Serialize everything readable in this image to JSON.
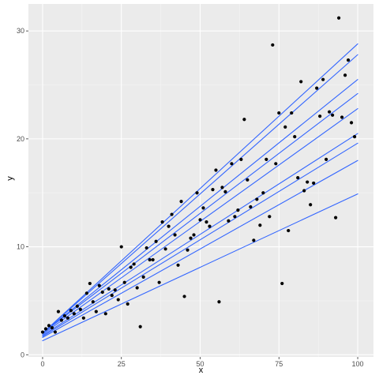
{
  "chart_data": {
    "type": "scatter",
    "xlabel": "x",
    "ylabel": "y",
    "xlim": [
      -4.5,
      105
    ],
    "ylim": [
      -0.2,
      32.5
    ],
    "x_ticks": [
      0,
      25,
      50,
      75,
      100
    ],
    "x_tick_labels": [
      "0",
      "25",
      "50",
      "75",
      "100"
    ],
    "y_ticks": [
      0,
      10,
      20,
      30
    ],
    "y_tick_labels": [
      "0",
      "10",
      "20",
      "30"
    ],
    "grid": true,
    "colors": {
      "panel": "#ebebeb",
      "grid_major": "#ffffff",
      "grid_minor": "#f5f5f5",
      "points": "#000000",
      "lines": "#3366ff"
    },
    "points": [
      {
        "x": 0,
        "y": 2.1
      },
      {
        "x": 1,
        "y": 2.4
      },
      {
        "x": 2,
        "y": 2.7
      },
      {
        "x": 3,
        "y": 2.5
      },
      {
        "x": 4,
        "y": 2.1
      },
      {
        "x": 5,
        "y": 4.0
      },
      {
        "x": 6,
        "y": 3.2
      },
      {
        "x": 7,
        "y": 3.6
      },
      {
        "x": 8,
        "y": 3.4
      },
      {
        "x": 9,
        "y": 4.1
      },
      {
        "x": 10,
        "y": 3.8
      },
      {
        "x": 11,
        "y": 4.5
      },
      {
        "x": 12,
        "y": 4.2
      },
      {
        "x": 13,
        "y": 3.4
      },
      {
        "x": 14,
        "y": 5.7
      },
      {
        "x": 15,
        "y": 6.6
      },
      {
        "x": 16,
        "y": 4.9
      },
      {
        "x": 17,
        "y": 4.0
      },
      {
        "x": 18,
        "y": 6.4
      },
      {
        "x": 19,
        "y": 5.8
      },
      {
        "x": 20,
        "y": 3.8
      },
      {
        "x": 21,
        "y": 6.1
      },
      {
        "x": 22,
        "y": 5.5
      },
      {
        "x": 23,
        "y": 6.0
      },
      {
        "x": 24,
        "y": 5.1
      },
      {
        "x": 25,
        "y": 10.0
      },
      {
        "x": 26,
        "y": 6.7
      },
      {
        "x": 27,
        "y": 4.7
      },
      {
        "x": 28,
        "y": 8.1
      },
      {
        "x": 29,
        "y": 8.4
      },
      {
        "x": 30,
        "y": 6.2
      },
      {
        "x": 31,
        "y": 2.6
      },
      {
        "x": 32,
        "y": 7.2
      },
      {
        "x": 33,
        "y": 9.9
      },
      {
        "x": 34,
        "y": 8.8
      },
      {
        "x": 35,
        "y": 8.8
      },
      {
        "x": 36,
        "y": 10.5
      },
      {
        "x": 37,
        "y": 6.7
      },
      {
        "x": 38,
        "y": 12.3
      },
      {
        "x": 39,
        "y": 9.8
      },
      {
        "x": 40,
        "y": 11.9
      },
      {
        "x": 41,
        "y": 13.0
      },
      {
        "x": 42,
        "y": 11.1
      },
      {
        "x": 43,
        "y": 8.3
      },
      {
        "x": 44,
        "y": 14.2
      },
      {
        "x": 45,
        "y": 5.4
      },
      {
        "x": 46,
        "y": 9.7
      },
      {
        "x": 47,
        "y": 10.8
      },
      {
        "x": 48,
        "y": 11.1
      },
      {
        "x": 49,
        "y": 15.0
      },
      {
        "x": 50,
        "y": 12.5
      },
      {
        "x": 51,
        "y": 13.6
      },
      {
        "x": 52,
        "y": 12.3
      },
      {
        "x": 53,
        "y": 11.9
      },
      {
        "x": 54,
        "y": 15.3
      },
      {
        "x": 55,
        "y": 17.1
      },
      {
        "x": 56,
        "y": 4.9
      },
      {
        "x": 57,
        "y": 15.5
      },
      {
        "x": 58,
        "y": 15.1
      },
      {
        "x": 59,
        "y": 12.4
      },
      {
        "x": 60,
        "y": 17.7
      },
      {
        "x": 61,
        "y": 12.8
      },
      {
        "x": 62,
        "y": 13.4
      },
      {
        "x": 63,
        "y": 18.1
      },
      {
        "x": 64,
        "y": 21.8
      },
      {
        "x": 65,
        "y": 16.2
      },
      {
        "x": 66,
        "y": 13.7
      },
      {
        "x": 67,
        "y": 10.6
      },
      {
        "x": 68,
        "y": 14.4
      },
      {
        "x": 69,
        "y": 12.0
      },
      {
        "x": 70,
        "y": 15.0
      },
      {
        "x": 71,
        "y": 18.1
      },
      {
        "x": 72,
        "y": 12.8
      },
      {
        "x": 73,
        "y": 28.7
      },
      {
        "x": 74,
        "y": 17.7
      },
      {
        "x": 75,
        "y": 22.4
      },
      {
        "x": 76,
        "y": 6.6
      },
      {
        "x": 77,
        "y": 21.1
      },
      {
        "x": 78,
        "y": 11.5
      },
      {
        "x": 79,
        "y": 22.4
      },
      {
        "x": 80,
        "y": 20.2
      },
      {
        "x": 81,
        "y": 16.4
      },
      {
        "x": 82,
        "y": 25.3
      },
      {
        "x": 83,
        "y": 15.2
      },
      {
        "x": 84,
        "y": 16.0
      },
      {
        "x": 85,
        "y": 13.9
      },
      {
        "x": 86,
        "y": 15.9
      },
      {
        "x": 87,
        "y": 24.7
      },
      {
        "x": 88,
        "y": 22.1
      },
      {
        "x": 89,
        "y": 25.5
      },
      {
        "x": 90,
        "y": 18.1
      },
      {
        "x": 91,
        "y": 22.5
      },
      {
        "x": 92,
        "y": 22.2
      },
      {
        "x": 93,
        "y": 12.7
      },
      {
        "x": 94,
        "y": 31.2
      },
      {
        "x": 95,
        "y": 22.0
      },
      {
        "x": 96,
        "y": 25.9
      },
      {
        "x": 97,
        "y": 27.3
      },
      {
        "x": 98,
        "y": 21.5
      },
      {
        "x": 99,
        "y": 20.2
      }
    ],
    "lines": [
      {
        "x": [
          0,
          100
        ],
        "y": [
          2.0,
          28.8
        ]
      },
      {
        "x": [
          0,
          100
        ],
        "y": [
          2.0,
          27.8
        ]
      },
      {
        "x": [
          0,
          100
        ],
        "y": [
          2.0,
          25.5
        ]
      },
      {
        "x": [
          0,
          100
        ],
        "y": [
          2.0,
          24.2
        ]
      },
      {
        "x": [
          0,
          100
        ],
        "y": [
          1.9,
          22.8
        ]
      },
      {
        "x": [
          0,
          100
        ],
        "y": [
          1.8,
          20.5
        ]
      },
      {
        "x": [
          0,
          100
        ],
        "y": [
          1.7,
          19.6
        ]
      },
      {
        "x": [
          0,
          100
        ],
        "y": [
          1.6,
          18.0
        ]
      },
      {
        "x": [
          0,
          100
        ],
        "y": [
          1.3,
          14.9
        ]
      }
    ]
  }
}
